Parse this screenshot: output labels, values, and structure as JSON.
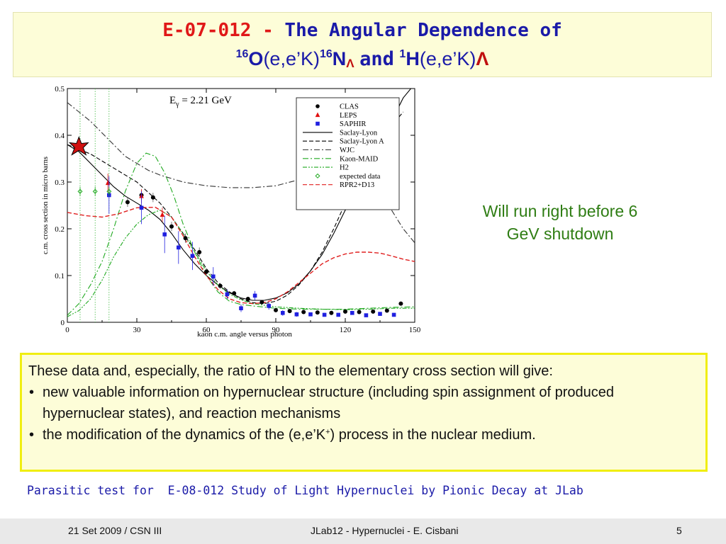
{
  "title": {
    "code": "E-07-012",
    "dash": "-",
    "line1_rest": "The Angular Dependence of",
    "o_mass": "16",
    "o_sym": "O",
    "reaction1": "(e,e’K)",
    "n_mass": "16",
    "n_sym": "N",
    "lambda_sub": "Λ",
    "and_word": "and",
    "h_mass": "1",
    "h_sym": "H",
    "reaction2": "(e,e’K)",
    "lambda_end": "Λ"
  },
  "note": {
    "line1": "Will run right before 6",
    "line2": "GeV shutdown"
  },
  "textbox": {
    "intro": "These data and, especially, the ratio of HN to the elementary cross section will give:",
    "bullet1": "new valuable information on hypernuclear structure (including spin assignment of produced hypernuclear states), and reaction mechanisms",
    "bullet2_pre": "the modification of the dynamics of the (e,e’K",
    "bullet2_sup": "+",
    "bullet2_post": ") process in the nuclear medium."
  },
  "parasitic": "Parasitic test for  E-08-012 Study of Light Hypernuclei by Pionic Decay at JLab",
  "footer": {
    "left": "21 Set 2009 / CSN III",
    "center": "JLab12 - Hypernuclei - E. Cisbani",
    "right": "5"
  },
  "chart_data": {
    "type": "scatter",
    "annotation": "E",
    "annotation_sub": "γ",
    "annotation_rest": " = 2.21 GeV",
    "xlabel": "kaon c.m. angle versus photon",
    "ylabel": "c.m. cross section in micro barns",
    "xlim": [
      0,
      150
    ],
    "ylim": [
      0,
      0.5
    ],
    "xticks": [
      0,
      30,
      60,
      90,
      120,
      150
    ],
    "yticks": [
      0,
      0.1,
      0.2,
      0.3,
      0.4,
      0.5
    ],
    "legend_position": "top-right",
    "series": [
      {
        "name": "CLAS",
        "kind": "points",
        "marker": "circle",
        "color": "#000000",
        "points": [
          [
            26,
            0.257,
            0.01
          ],
          [
            32,
            0.272,
            0.01
          ],
          [
            37,
            0.267,
            0.01
          ],
          [
            45,
            0.205,
            0.01
          ],
          [
            51,
            0.18,
            0.01
          ],
          [
            57,
            0.15,
            0.01
          ],
          [
            60,
            0.108,
            0.008
          ],
          [
            66,
            0.078,
            0.006
          ],
          [
            72,
            0.062,
            0.005
          ],
          [
            78,
            0.05,
            0.004
          ],
          [
            84,
            0.043,
            0.003
          ],
          [
            90,
            0.026,
            0.003
          ],
          [
            96,
            0.024,
            0.002
          ],
          [
            102,
            0.022,
            0.002
          ],
          [
            108,
            0.021,
            0.002
          ],
          [
            114,
            0.02,
            0.002
          ],
          [
            120,
            0.023,
            0.002
          ],
          [
            126,
            0.022,
            0.002
          ],
          [
            132,
            0.023,
            0.002
          ],
          [
            138,
            0.025,
            0.002
          ],
          [
            144,
            0.04,
            0.003
          ]
        ]
      },
      {
        "name": "LEPS",
        "kind": "points",
        "marker": "triangle",
        "color": "#e01010",
        "points": [
          [
            17.5,
            0.298,
            0.02
          ],
          [
            32,
            0.27,
            0.015
          ],
          [
            41,
            0.23,
            0.015
          ]
        ]
      },
      {
        "name": "SAPHIR",
        "kind": "points",
        "marker": "square",
        "color": "#2020e0",
        "points": [
          [
            18,
            0.272,
            0.04
          ],
          [
            32,
            0.245,
            0.035
          ],
          [
            42,
            0.188,
            0.04
          ],
          [
            48,
            0.16,
            0.035
          ],
          [
            54,
            0.142,
            0.03
          ],
          [
            63,
            0.098,
            0.02
          ],
          [
            69,
            0.06,
            0.01
          ],
          [
            75,
            0.03,
            0.008
          ],
          [
            81,
            0.057,
            0.01
          ],
          [
            87,
            0.035,
            0.008
          ],
          [
            93,
            0.02,
            0.006
          ],
          [
            99,
            0.017,
            0.005
          ],
          [
            105,
            0.017,
            0.004
          ],
          [
            111,
            0.016,
            0.004
          ],
          [
            117,
            0.016,
            0.004
          ],
          [
            123,
            0.02,
            0.004
          ],
          [
            129,
            0.015,
            0.004
          ],
          [
            135,
            0.018,
            0.004
          ],
          [
            141,
            0.016,
            0.004
          ]
        ]
      },
      {
        "name": "Saclay-Lyon",
        "kind": "line",
        "style": "solid",
        "color": "#000000",
        "points": [
          [
            0,
            0.38
          ],
          [
            5,
            0.365
          ],
          [
            10,
            0.34
          ],
          [
            15,
            0.315
          ],
          [
            20,
            0.29
          ],
          [
            25,
            0.27
          ],
          [
            30,
            0.255
          ],
          [
            35,
            0.24
          ],
          [
            40,
            0.22
          ],
          [
            45,
            0.19
          ],
          [
            50,
            0.155
          ],
          [
            55,
            0.125
          ],
          [
            60,
            0.1
          ],
          [
            65,
            0.08
          ],
          [
            70,
            0.063
          ],
          [
            75,
            0.052
          ],
          [
            80,
            0.047
          ],
          [
            85,
            0.047
          ],
          [
            90,
            0.052
          ],
          [
            95,
            0.063
          ],
          [
            100,
            0.082
          ],
          [
            105,
            0.11
          ],
          [
            110,
            0.145
          ],
          [
            115,
            0.19
          ],
          [
            120,
            0.24
          ],
          [
            125,
            0.29
          ],
          [
            130,
            0.34
          ],
          [
            135,
            0.39
          ],
          [
            140,
            0.43
          ],
          [
            145,
            0.48
          ],
          [
            150,
            0.51
          ]
        ]
      },
      {
        "name": "Saclay-Lyon A",
        "kind": "line",
        "style": "dash",
        "color": "#000000",
        "points": [
          [
            0,
            0.38
          ],
          [
            10,
            0.36
          ],
          [
            20,
            0.33
          ],
          [
            30,
            0.3
          ],
          [
            40,
            0.255
          ],
          [
            45,
            0.225
          ],
          [
            50,
            0.19
          ],
          [
            55,
            0.155
          ],
          [
            60,
            0.115
          ],
          [
            65,
            0.085
          ],
          [
            70,
            0.065
          ],
          [
            75,
            0.05
          ],
          [
            80,
            0.042
          ],
          [
            85,
            0.04
          ],
          [
            90,
            0.045
          ],
          [
            95,
            0.058
          ],
          [
            100,
            0.08
          ],
          [
            105,
            0.11
          ],
          [
            110,
            0.15
          ],
          [
            115,
            0.2
          ],
          [
            120,
            0.255
          ],
          [
            125,
            0.3
          ],
          [
            130,
            0.345
          ],
          [
            135,
            0.385
          ],
          [
            140,
            0.42
          ],
          [
            145,
            0.45
          ]
        ]
      },
      {
        "name": "WJC",
        "kind": "line",
        "style": "dashdot",
        "color": "#333333",
        "points": [
          [
            0,
            0.47
          ],
          [
            5,
            0.45
          ],
          [
            10,
            0.43
          ],
          [
            15,
            0.405
          ],
          [
            20,
            0.38
          ],
          [
            25,
            0.355
          ],
          [
            30,
            0.34
          ],
          [
            35,
            0.325
          ],
          [
            40,
            0.315
          ],
          [
            50,
            0.3
          ],
          [
            60,
            0.292
          ],
          [
            70,
            0.288
          ],
          [
            80,
            0.288
          ],
          [
            90,
            0.292
          ],
          [
            100,
            0.305
          ],
          [
            110,
            0.33
          ],
          [
            120,
            0.36
          ],
          [
            125,
            0.37
          ],
          [
            130,
            0.35
          ],
          [
            135,
            0.3
          ],
          [
            140,
            0.24
          ],
          [
            145,
            0.2
          ],
          [
            150,
            0.17
          ]
        ]
      },
      {
        "name": "Kaon-MAID",
        "kind": "line",
        "style": "dashdot",
        "color": "#22aa22",
        "points": [
          [
            0,
            0.015
          ],
          [
            5,
            0.04
          ],
          [
            10,
            0.08
          ],
          [
            15,
            0.13
          ],
          [
            20,
            0.2
          ],
          [
            25,
            0.28
          ],
          [
            30,
            0.34
          ],
          [
            34,
            0.362
          ],
          [
            38,
            0.355
          ],
          [
            42,
            0.32
          ],
          [
            46,
            0.27
          ],
          [
            50,
            0.21
          ],
          [
            55,
            0.15
          ],
          [
            60,
            0.1
          ],
          [
            65,
            0.065
          ],
          [
            70,
            0.045
          ],
          [
            75,
            0.038
          ],
          [
            80,
            0.035
          ],
          [
            90,
            0.03
          ],
          [
            100,
            0.028
          ],
          [
            110,
            0.028
          ],
          [
            120,
            0.028
          ],
          [
            130,
            0.03
          ],
          [
            140,
            0.032
          ],
          [
            150,
            0.033
          ]
        ]
      },
      {
        "name": "H2",
        "kind": "line",
        "style": "dashdotdot",
        "color": "#22aa22",
        "points": [
          [
            0,
            0.012
          ],
          [
            5,
            0.025
          ],
          [
            10,
            0.05
          ],
          [
            15,
            0.09
          ],
          [
            20,
            0.14
          ],
          [
            25,
            0.18
          ],
          [
            30,
            0.21
          ],
          [
            35,
            0.23
          ],
          [
            40,
            0.24
          ],
          [
            45,
            0.225
          ],
          [
            50,
            0.19
          ],
          [
            55,
            0.15
          ],
          [
            60,
            0.11
          ],
          [
            65,
            0.08
          ],
          [
            70,
            0.06
          ],
          [
            75,
            0.048
          ],
          [
            80,
            0.04
          ],
          [
            90,
            0.033
          ],
          [
            100,
            0.03
          ],
          [
            110,
            0.028
          ],
          [
            120,
            0.027
          ],
          [
            130,
            0.028
          ],
          [
            140,
            0.03
          ],
          [
            150,
            0.03
          ]
        ]
      },
      {
        "name": "expected data",
        "kind": "points",
        "marker": "diamond",
        "color": "#22aa22",
        "points": [
          [
            5.5,
            0.28,
            0.01
          ],
          [
            12,
            0.28,
            0.01
          ],
          [
            18,
            0.28,
            0.01
          ]
        ]
      },
      {
        "name": "RPR2+D13",
        "kind": "line",
        "style": "dash",
        "color": "#e02020",
        "points": [
          [
            0,
            0.235
          ],
          [
            8,
            0.228
          ],
          [
            15,
            0.225
          ],
          [
            22,
            0.232
          ],
          [
            30,
            0.245
          ],
          [
            38,
            0.246
          ],
          [
            45,
            0.225
          ],
          [
            50,
            0.185
          ],
          [
            55,
            0.14
          ],
          [
            60,
            0.1
          ],
          [
            65,
            0.07
          ],
          [
            70,
            0.05
          ],
          [
            75,
            0.042
          ],
          [
            80,
            0.04
          ],
          [
            85,
            0.042
          ],
          [
            90,
            0.05
          ],
          [
            95,
            0.065
          ],
          [
            100,
            0.085
          ],
          [
            105,
            0.105
          ],
          [
            110,
            0.125
          ],
          [
            115,
            0.138
          ],
          [
            120,
            0.146
          ],
          [
            125,
            0.15
          ],
          [
            130,
            0.15
          ],
          [
            135,
            0.148
          ],
          [
            140,
            0.142
          ],
          [
            145,
            0.135
          ],
          [
            150,
            0.13
          ]
        ]
      }
    ]
  }
}
